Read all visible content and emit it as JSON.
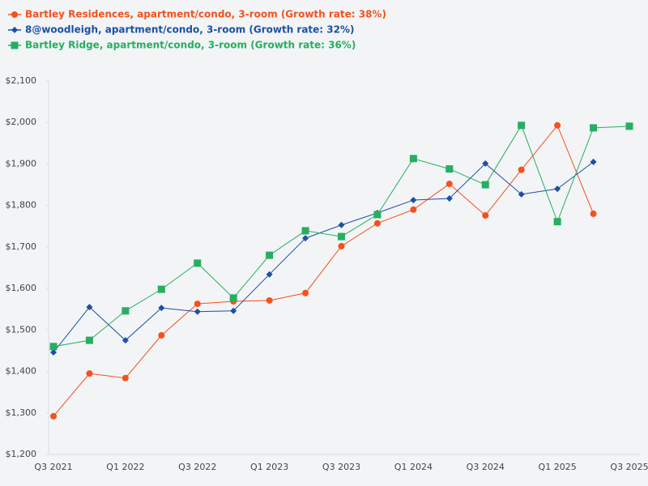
{
  "chart_data": {
    "type": "line",
    "categories": [
      "Q3 2021",
      null,
      "Q1 2022",
      null,
      "Q3 2022",
      null,
      "Q1 2023",
      null,
      "Q3 2023",
      null,
      "Q1 2024",
      null,
      "Q3 2024",
      null,
      "Q1 2025",
      null,
      "Q3 2025"
    ],
    "series": [
      {
        "name": "Bartley Residences, apartment/condo, 3-room (Growth rate: 38%)",
        "color": "#f4511e",
        "marker": "circle",
        "values": [
          1292,
          1395,
          1384,
          1487,
          1563,
          1569,
          1571,
          1589,
          1702,
          1757,
          1790,
          1852,
          1776,
          1886,
          1993,
          1780,
          null
        ]
      },
      {
        "name": "8@woodleigh, apartment/condo, 3-room (Growth rate: 32%)",
        "color": "#1e50a2",
        "marker": "diamond",
        "values": [
          1446,
          1555,
          1475,
          1553,
          1544,
          1546,
          1634,
          1721,
          1753,
          1782,
          1813,
          1817,
          1901,
          1827,
          1840,
          1905,
          null
        ]
      },
      {
        "name": "Bartley Ridge, apartment/condo, 3-room (Growth rate: 36%)",
        "color": "#27ae60",
        "marker": "square",
        "values": [
          1460,
          1475,
          1546,
          1598,
          1661,
          1577,
          1680,
          1739,
          1725,
          1778,
          1913,
          1888,
          1850,
          1993,
          1761,
          1987,
          1991
        ]
      }
    ],
    "ylim": [
      1200,
      2100
    ],
    "yticks": [
      {
        "value": 1200,
        "label": "$1,200"
      },
      {
        "value": 1300,
        "label": "$1,300"
      },
      {
        "value": 1400,
        "label": "$1,400"
      },
      {
        "value": 1500,
        "label": "$1,500"
      },
      {
        "value": 1600,
        "label": "$1,600"
      },
      {
        "value": 1700,
        "label": "$1,700"
      },
      {
        "value": 1800,
        "label": "$1,800"
      },
      {
        "value": 1900,
        "label": "$1,900"
      },
      {
        "value": 2000,
        "label": "$2,000"
      },
      {
        "value": 2100,
        "label": "$2,100"
      }
    ],
    "grid": false
  }
}
